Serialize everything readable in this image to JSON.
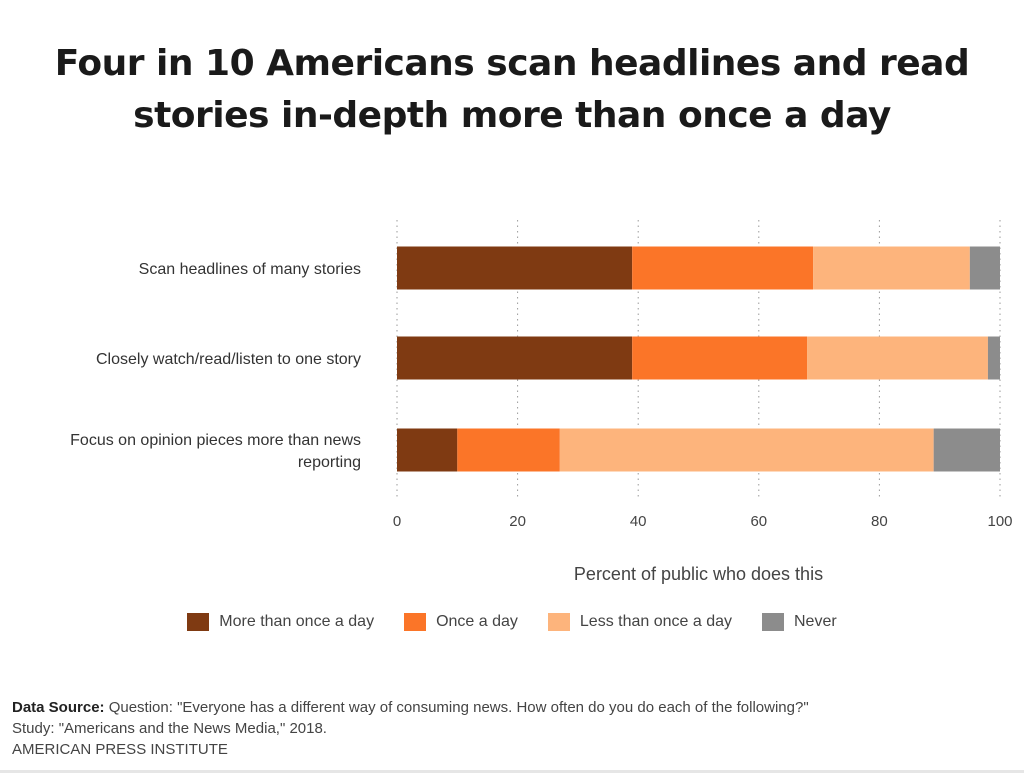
{
  "title_lines": [
    "Four in 10 Americans scan headlines and read",
    "stories in-depth more than once a day"
  ],
  "chart_data": {
    "type": "bar",
    "orientation": "horizontal",
    "stacked": true,
    "categories": [
      "Scan headlines of many stories",
      "Closely watch/read/listen to one story",
      "Focus on opinion pieces more than news reporting"
    ],
    "series": [
      {
        "name": "More than once a day",
        "color": "#7f3a12",
        "values": [
          39,
          39,
          10
        ]
      },
      {
        "name": "Once a day",
        "color": "#fb7528",
        "values": [
          30,
          29,
          17
        ]
      },
      {
        "name": "Less than once a day",
        "color": "#fdb47c",
        "values": [
          26,
          30,
          62
        ]
      },
      {
        "name": "Never",
        "color": "#8c8c8c",
        "values": [
          5,
          2,
          11
        ]
      }
    ],
    "xlim": [
      0,
      100
    ],
    "xticks": [
      "0",
      "20",
      "40",
      "60",
      "80",
      "100"
    ],
    "xlabel": "Percent of public who does this",
    "grid": "vertical dotted",
    "legend_position": "bottom"
  },
  "footer": {
    "source_label": "Data Source:",
    "source_text": " Question: \"Everyone has a different way of consuming news. How often do you do each of the following?\"",
    "study": "Study: \"Americans and the News Media,\" 2018.",
    "org": "AMERICAN PRESS INSTITUTE"
  }
}
